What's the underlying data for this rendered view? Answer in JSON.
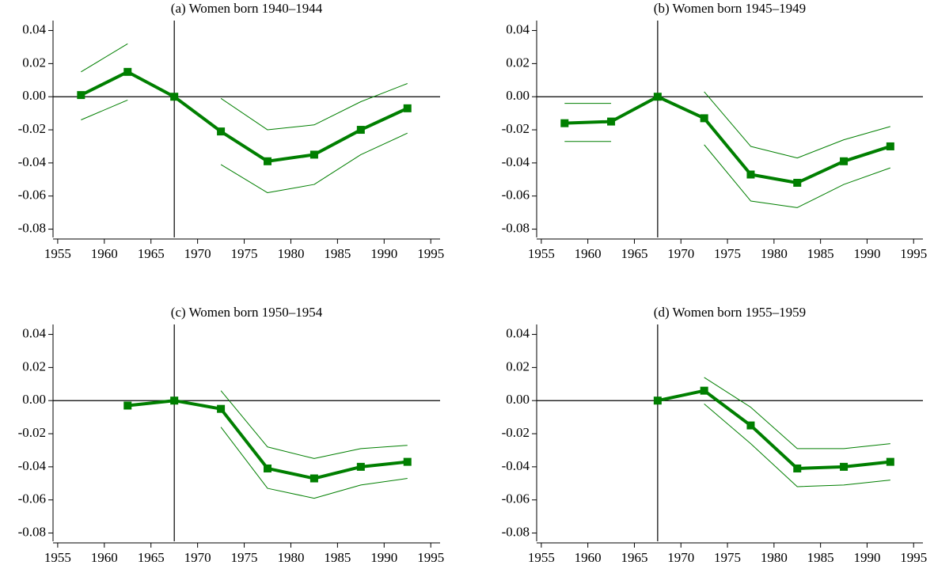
{
  "chart_data": [
    {
      "type": "line",
      "title": "(a) Women born 1940–1944",
      "x": [
        1957.5,
        1962.5,
        1967.5,
        1972.5,
        1977.5,
        1982.5,
        1987.5,
        1992.5
      ],
      "series": [
        {
          "color": "#007f00",
          "marker": "square",
          "values": [
            0.001,
            0.015,
            0.0,
            -0.021,
            -0.039,
            -0.035,
            -0.02,
            -0.007
          ]
        },
        {
          "color": "#007f00",
          "values": [
            0.015,
            0.032,
            null,
            -0.001,
            -0.02,
            -0.017,
            -0.003,
            0.008
          ]
        },
        {
          "color": "#007f00",
          "values": [
            -0.014,
            -0.002,
            null,
            -0.041,
            -0.058,
            -0.053,
            -0.035,
            -0.022
          ]
        }
      ],
      "xlim": [
        1954.5,
        1996
      ],
      "xticks": [
        1955,
        1960,
        1965,
        1970,
        1975,
        1980,
        1985,
        1990,
        1995
      ],
      "ylim": [
        -0.085,
        0.046
      ],
      "yticks": [
        0.04,
        0.02,
        {
          "value": 0,
          "label": "0.00"
        },
        -0.02,
        -0.04,
        -0.06,
        -0.08
      ],
      "vline": 1967.5,
      "hline": 0
    },
    {
      "type": "line",
      "title": "(b) Women born 1945–1949",
      "x": [
        1957.5,
        1962.5,
        1967.5,
        1972.5,
        1977.5,
        1982.5,
        1987.5,
        1992.5
      ],
      "series": [
        {
          "color": "#007f00",
          "marker": "square",
          "values": [
            -0.016,
            -0.015,
            0.0,
            -0.013,
            -0.047,
            -0.052,
            -0.039,
            -0.03
          ]
        },
        {
          "color": "#007f00",
          "values": [
            -0.004,
            -0.004,
            null,
            0.003,
            -0.03,
            -0.037,
            -0.026,
            -0.018
          ]
        },
        {
          "color": "#007f00",
          "values": [
            -0.027,
            -0.027,
            null,
            -0.029,
            -0.063,
            -0.067,
            -0.053,
            -0.043
          ]
        }
      ],
      "xlim": [
        1954.5,
        1996
      ],
      "xticks": [
        1955,
        1960,
        1965,
        1970,
        1975,
        1980,
        1985,
        1990,
        1995
      ],
      "ylim": [
        -0.085,
        0.046
      ],
      "yticks": [
        0.04,
        0.02,
        {
          "value": 0,
          "label": "0.00"
        },
        -0.02,
        -0.04,
        -0.06,
        -0.08
      ],
      "vline": 1967.5,
      "hline": 0
    },
    {
      "type": "line",
      "title": "(c) Women born 1950–1954",
      "x": [
        1957.5,
        1962.5,
        1967.5,
        1972.5,
        1977.5,
        1982.5,
        1987.5,
        1992.5
      ],
      "series": [
        {
          "color": "#007f00",
          "marker": "square",
          "values": [
            null,
            -0.003,
            0.0,
            -0.005,
            -0.041,
            -0.047,
            -0.04,
            -0.037
          ]
        },
        {
          "color": "#007f00",
          "values": [
            null,
            null,
            null,
            0.006,
            -0.028,
            -0.035,
            -0.029,
            -0.027
          ]
        },
        {
          "color": "#007f00",
          "values": [
            null,
            null,
            null,
            -0.016,
            -0.053,
            -0.059,
            -0.051,
            -0.047
          ]
        }
      ],
      "xlim": [
        1954.5,
        1996
      ],
      "xticks": [
        1955,
        1960,
        1965,
        1970,
        1975,
        1980,
        1985,
        1990,
        1995
      ],
      "ylim": [
        -0.085,
        0.046
      ],
      "yticks": [
        0.04,
        0.02,
        {
          "value": 0,
          "label": "0.00"
        },
        -0.02,
        -0.04,
        -0.06,
        -0.08
      ],
      "vline": 1967.5,
      "hline": 0
    },
    {
      "type": "line",
      "title": "(d) Women born 1955–1959",
      "x": [
        1957.5,
        1962.5,
        1967.5,
        1972.5,
        1977.5,
        1982.5,
        1987.5,
        1992.5
      ],
      "series": [
        {
          "color": "#007f00",
          "marker": "square",
          "values": [
            null,
            null,
            0.0,
            0.006,
            -0.015,
            -0.041,
            -0.04,
            -0.037
          ]
        },
        {
          "color": "#007f00",
          "values": [
            null,
            null,
            null,
            0.014,
            -0.004,
            -0.029,
            -0.029,
            -0.026
          ]
        },
        {
          "color": "#007f00",
          "values": [
            null,
            null,
            null,
            -0.002,
            -0.026,
            -0.052,
            -0.051,
            -0.048
          ]
        }
      ],
      "xlim": [
        1954.5,
        1996
      ],
      "xticks": [
        1955,
        1960,
        1965,
        1970,
        1975,
        1980,
        1985,
        1990,
        1995
      ],
      "ylim": [
        -0.085,
        0.046
      ],
      "yticks": [
        0.04,
        0.02,
        {
          "value": 0,
          "label": "0.00"
        },
        -0.02,
        -0.04,
        -0.06,
        -0.08
      ],
      "vline": 1967.5,
      "hline": 0
    }
  ]
}
